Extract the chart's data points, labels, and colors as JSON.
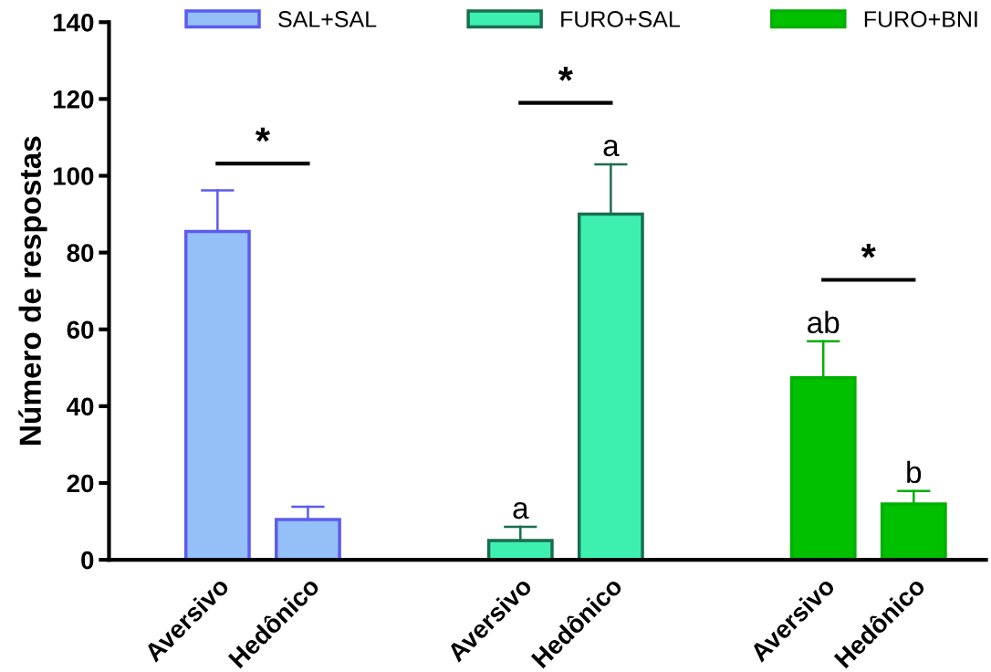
{
  "chart_data": {
    "type": "bar",
    "ylabel": "Número de respostas",
    "categories": [
      "Aversivo",
      "Hedônico",
      "Aversivo",
      "Hedônico",
      "Aversivo",
      "Hedônico"
    ],
    "series": [
      {
        "name": "SAL+SAL",
        "color": "#94bff7",
        "values": [
          85.5,
          10.5,
          null,
          null,
          null,
          null
        ],
        "errors": [
          [
            85.5,
            96.2
          ],
          [
            10.5,
            13.8
          ],
          null,
          null,
          null,
          null
        ]
      },
      {
        "name": "FURO+SAL",
        "color": "#3ef0b0",
        "values": [
          null,
          null,
          5,
          90,
          null,
          null
        ],
        "errors": [
          null,
          null,
          [
            5,
            8.6
          ],
          [
            90,
            103
          ],
          null,
          null
        ],
        "value_labels": [
          null,
          null,
          "a",
          "a",
          null,
          null
        ]
      },
      {
        "name": "FURO+BNI",
        "color": "#00c000",
        "values": [
          null,
          null,
          null,
          null,
          47.4,
          14.5
        ],
        "errors": [
          null,
          null,
          null,
          null,
          [
            47.4,
            56.9
          ],
          [
            14.5,
            17.9
          ]
        ],
        "value_labels": [
          null,
          null,
          null,
          null,
          "ab",
          "b"
        ]
      }
    ],
    "annotations": [
      "*",
      "*",
      "*"
    ],
    "ylim": [
      0,
      140
    ],
    "yticks": [
      0,
      20,
      40,
      60,
      80,
      100,
      120,
      140
    ],
    "grid": false,
    "legend": "top"
  }
}
